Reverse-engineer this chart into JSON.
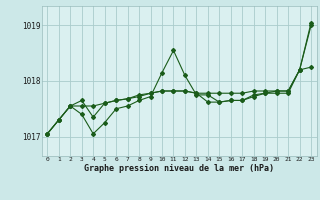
{
  "background_color": "#cce8e8",
  "plot_bg_color": "#daf0f0",
  "grid_color": "#aacccc",
  "line_color": "#1a5c1a",
  "title": "Graphe pression niveau de la mer (hPa)",
  "ylabel_labels": [
    1017,
    1018,
    1019
  ],
  "xlim": [
    -0.5,
    23.5
  ],
  "ylim": [
    1016.65,
    1019.35
  ],
  "hours": [
    0,
    1,
    2,
    3,
    4,
    5,
    6,
    7,
    8,
    9,
    10,
    11,
    12,
    13,
    14,
    15,
    16,
    17,
    18,
    19,
    20,
    21,
    22,
    23
  ],
  "line1": [
    1017.05,
    1017.3,
    1017.55,
    1017.65,
    1017.35,
    1017.6,
    1017.65,
    1017.68,
    1017.72,
    1017.78,
    1017.82,
    1017.82,
    1017.82,
    1017.78,
    1017.78,
    1017.78,
    1017.78,
    1017.78,
    1017.82,
    1017.82,
    1017.82,
    1017.82,
    1018.2,
    1019.0
  ],
  "line2": [
    1017.05,
    1017.3,
    1017.55,
    1017.4,
    1017.05,
    1017.25,
    1017.5,
    1017.55,
    1017.65,
    1017.72,
    1018.15,
    1018.55,
    1018.1,
    1017.75,
    1017.75,
    1017.62,
    1017.65,
    1017.65,
    1017.72,
    1017.78,
    1017.82,
    1017.82,
    1018.2,
    1018.25
  ],
  "line3": [
    1017.05,
    1017.3,
    1017.55,
    1017.55,
    1017.55,
    1017.6,
    1017.65,
    1017.68,
    1017.75,
    1017.78,
    1017.82,
    1017.82,
    1017.82,
    1017.78,
    1017.62,
    1017.62,
    1017.65,
    1017.65,
    1017.75,
    1017.78,
    1017.78,
    1017.78,
    1018.2,
    1019.05
  ]
}
